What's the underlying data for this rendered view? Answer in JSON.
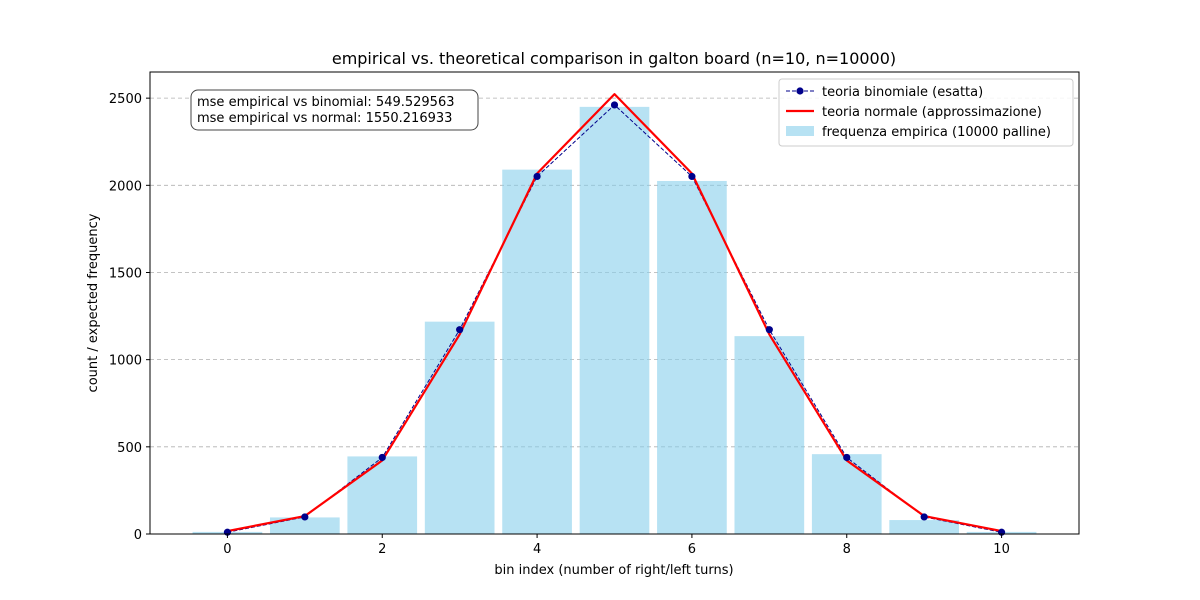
{
  "chart_data": {
    "type": "bar",
    "title": "empirical vs. theoretical comparison in galton board (n=10, n=10000)",
    "xlabel": "bin index (number of right/left turns)",
    "ylabel": "count / expected frequency",
    "xlim": [
      -1,
      11
    ],
    "ylim": [
      0,
      2650
    ],
    "xticks": [
      0,
      2,
      4,
      6,
      8,
      10
    ],
    "yticks": [
      0,
      500,
      1000,
      1500,
      2000,
      2500
    ],
    "grid": "horizontal dashed",
    "legend_position": "top-right",
    "x": [
      0,
      1,
      2,
      3,
      4,
      5,
      6,
      7,
      8,
      9,
      10
    ],
    "series": [
      {
        "name": "teoria binomiale (esatta)",
        "kind": "line-dashed-markers",
        "color": "#00008b",
        "values": [
          10,
          98,
          439,
          1172,
          2051,
          2461,
          2051,
          1172,
          439,
          98,
          10
        ]
      },
      {
        "name": "teoria normale (approssimazione)",
        "kind": "line",
        "color": "#ff0000",
        "values": [
          17,
          103,
          422,
          1145,
          2068,
          2523,
          2068,
          1145,
          422,
          103,
          17
        ]
      },
      {
        "name": "frequenza empirica (10000 palline)",
        "kind": "bar",
        "color": "#87ceeb",
        "values": [
          12,
          95,
          445,
          1218,
          2090,
          2450,
          2025,
          1135,
          458,
          80,
          12
        ]
      }
    ],
    "annotation": {
      "line1": "mse empirical vs binomial: 549.529563",
      "line2": "mse empirical vs normal: 1550.216933"
    }
  }
}
